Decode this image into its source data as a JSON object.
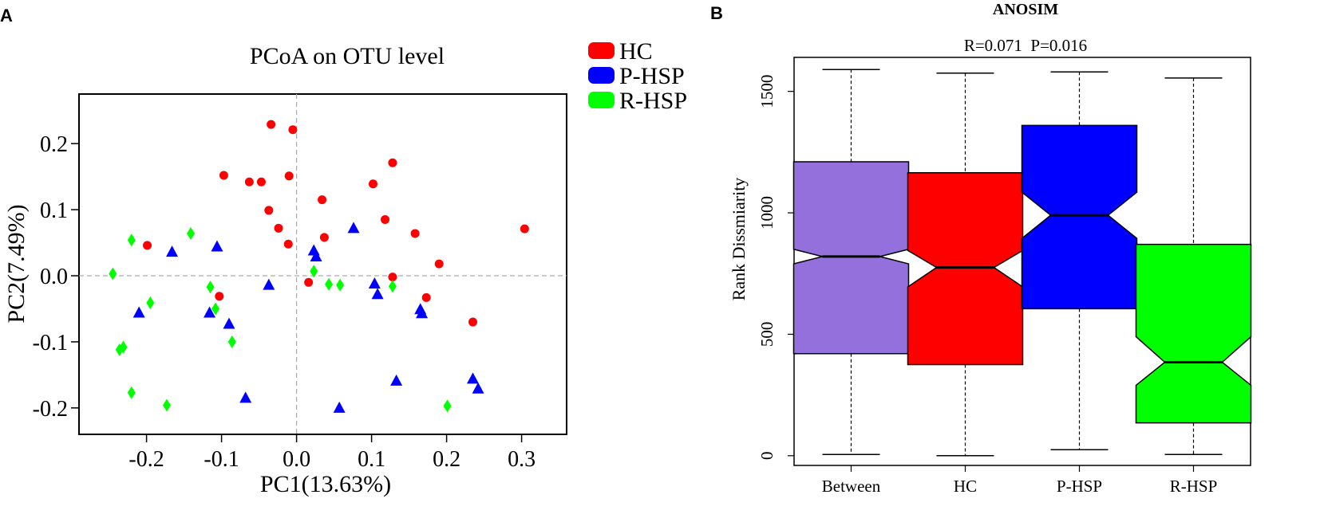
{
  "panels": {
    "a": "A",
    "b": "B"
  },
  "chart_data": [
    {
      "type": "scatter",
      "title": "PCoA on OTU level",
      "xlabel": "PC1(13.63%)",
      "ylabel": "PC2(7.49%)",
      "xlim": [
        -0.29,
        0.36
      ],
      "ylim": [
        -0.24,
        0.275
      ],
      "xticks": [
        -0.2,
        -0.1,
        0.0,
        0.1,
        0.2,
        0.3
      ],
      "xtick_labels": [
        "-0.2",
        "-0.1",
        "0.0",
        "0.1",
        "0.2",
        "0.3"
      ],
      "yticks": [
        0.2,
        0.1,
        0.0,
        -0.1,
        -0.2
      ],
      "ytick_labels": [
        "0.2",
        "0.1",
        "0.0",
        "-0.1",
        "-0.2"
      ],
      "reference_lines": {
        "x": 0,
        "y": 0
      },
      "legend": [
        {
          "label": "HC",
          "color": "#ff0000"
        },
        {
          "label": "P-HSP",
          "color": "#0000ff"
        },
        {
          "label": "R-HSP",
          "color": "#00ff00"
        }
      ],
      "series": [
        {
          "name": "HC",
          "color": "#ff0000",
          "marker": "circle",
          "x": [
            -0.034,
            -0.005,
            -0.097,
            -0.063,
            -0.047,
            -0.01,
            0.034,
            -0.037,
            -0.024,
            -0.011,
            0.037,
            0.128,
            0.102,
            0.118,
            0.158,
            0.19,
            0.304,
            -0.199,
            -0.103,
            0.016,
            0.128,
            0.173,
            0.235
          ],
          "y": [
            0.229,
            0.221,
            0.152,
            0.142,
            0.142,
            0.151,
            0.115,
            0.099,
            0.072,
            0.048,
            0.058,
            0.171,
            0.139,
            0.085,
            0.064,
            0.018,
            0.071,
            0.046,
            -0.031,
            -0.01,
            -0.002,
            -0.033,
            -0.07
          ]
        },
        {
          "name": "P-HSP",
          "color": "#0000ff",
          "marker": "triangle",
          "x": [
            -0.166,
            -0.106,
            0.023,
            0.026,
            0.076,
            -0.037,
            0.104,
            0.108,
            -0.21,
            -0.116,
            -0.09,
            0.165,
            0.167,
            -0.068,
            0.057,
            0.133,
            0.235,
            0.242
          ],
          "y": [
            0.036,
            0.044,
            0.038,
            0.029,
            0.072,
            -0.014,
            -0.012,
            -0.028,
            -0.056,
            -0.056,
            -0.073,
            -0.051,
            -0.057,
            -0.185,
            -0.2,
            -0.159,
            -0.156,
            -0.171
          ]
        },
        {
          "name": "R-HSP",
          "color": "#00ff00",
          "marker": "diamond",
          "x": [
            -0.22,
            -0.141,
            -0.245,
            0.023,
            -0.115,
            0.043,
            0.058,
            0.128,
            -0.108,
            -0.195,
            -0.086,
            -0.236,
            -0.231,
            -0.22,
            -0.173,
            0.201
          ],
          "y": [
            0.054,
            0.064,
            0.003,
            0.007,
            -0.017,
            -0.013,
            -0.014,
            -0.016,
            -0.05,
            -0.041,
            -0.1,
            -0.112,
            -0.108,
            -0.177,
            -0.196,
            -0.197
          ]
        }
      ]
    },
    {
      "type": "box",
      "title": "ANOSIM",
      "subtitle": "R=0.071  P=0.016",
      "ylabel": "Rank Dissmiarity",
      "ylim": [
        -40,
        1640
      ],
      "yticks": [
        0,
        500,
        1000,
        1500
      ],
      "ytick_labels": [
        "0",
        "500",
        "1000",
        "1500"
      ],
      "notched": true,
      "categories": [
        "Between",
        "HC",
        "P-HSP",
        "R-HSP"
      ],
      "boxes": [
        {
          "name": "Between",
          "color": "#9370db",
          "min": 5,
          "q1": 420,
          "median": 820,
          "q3": 1210,
          "max": 1590,
          "notch_low": 790,
          "notch_high": 850
        },
        {
          "name": "HC",
          "color": "#ff0000",
          "min": 0,
          "q1": 375,
          "median": 775,
          "q3": 1165,
          "max": 1575,
          "notch_low": 695,
          "notch_high": 845
        },
        {
          "name": "P-HSP",
          "color": "#0000ff",
          "min": 25,
          "q1": 605,
          "median": 990,
          "q3": 1360,
          "max": 1580,
          "notch_low": 895,
          "notch_high": 1085
        },
        {
          "name": "R-HSP",
          "color": "#00ff00",
          "min": 5,
          "q1": 135,
          "median": 385,
          "q3": 870,
          "max": 1555,
          "notch_low": 290,
          "notch_high": 490
        }
      ]
    }
  ]
}
